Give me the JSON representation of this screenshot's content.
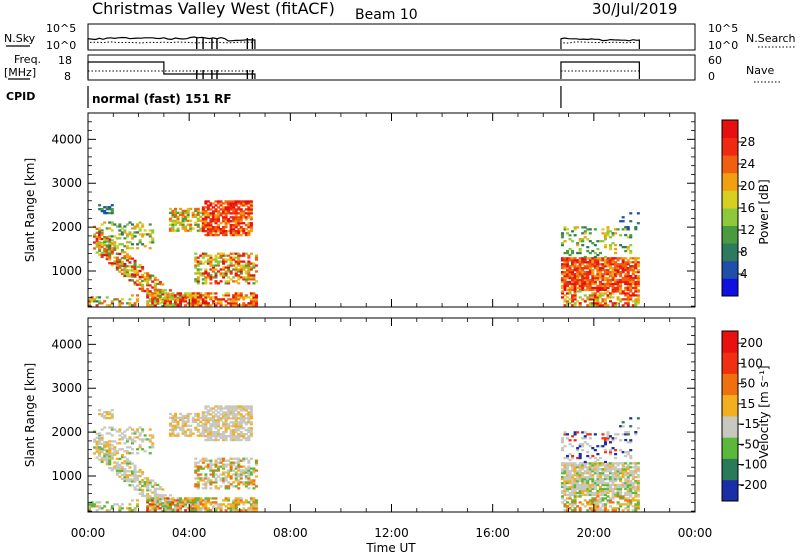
{
  "header": {
    "station": "Christmas Valley West (fitACF)",
    "beam": "Beam 10",
    "date": "30/Jul/2019"
  },
  "noise_panel": {
    "left_label": "N.Sky",
    "right_label": "N.Search",
    "left_ticks": [
      "10^5",
      "10^0"
    ],
    "right_ticks": [
      "10^5",
      "10^0"
    ]
  },
  "freq_panel": {
    "left_label_line1": "Freq.",
    "left_label_line2": "[MHz]",
    "right_label": "Nave",
    "left_ticks": [
      "18",
      "8"
    ],
    "right_ticks": [
      "60",
      "0"
    ]
  },
  "cpid": {
    "label": "CPID",
    "text": "normal (fast) 151 RF"
  },
  "chart_data": [
    {
      "type": "heatmap",
      "title": "",
      "xlabel": "",
      "ylabel": "Slant Range [km]",
      "xlim_hours": [
        0,
        24
      ],
      "ylim_km": [
        180,
        4600
      ],
      "y_ticks": [
        "1000",
        "2000",
        "3000",
        "4000"
      ],
      "colorbar": {
        "label": "Power [dB]",
        "ticks": [
          "4",
          "8",
          "12",
          "16",
          "20",
          "24",
          "28"
        ],
        "colors": [
          "#1010e0",
          "#1f4fa8",
          "#2e7a5e",
          "#4a9a40",
          "#8ec93c",
          "#d7d020",
          "#f0a010",
          "#f06010",
          "#f02a10",
          "#e61010"
        ]
      },
      "observed_intervals_hours": [
        [
          0.0,
          6.6
        ],
        [
          18.7,
          21.8
        ]
      ]
    },
    {
      "type": "heatmap",
      "title": "",
      "xlabel": "Time UT",
      "ylabel": "Slant Range [km]",
      "xlim_hours": [
        0,
        24
      ],
      "ylim_km": [
        180,
        4600
      ],
      "y_ticks": [
        "1000",
        "2000",
        "3000",
        "4000"
      ],
      "x_ticks": [
        "00:00",
        "04:00",
        "08:00",
        "12:00",
        "16:00",
        "20:00",
        "00:00"
      ],
      "colorbar": {
        "label": "Velocity [m s⁻¹]",
        "ticks": [
          "200",
          "100",
          "50",
          "15",
          "-15",
          "-50",
          "-100",
          "-200"
        ],
        "colors": [
          "#1a2ea8",
          "#2a7a5a",
          "#5cb83a",
          "#c8c8c0",
          "#f2b020",
          "#f07010",
          "#f03010",
          "#e81010"
        ]
      },
      "observed_intervals_hours": [
        [
          0.0,
          6.6
        ],
        [
          18.7,
          21.8
        ]
      ]
    }
  ]
}
